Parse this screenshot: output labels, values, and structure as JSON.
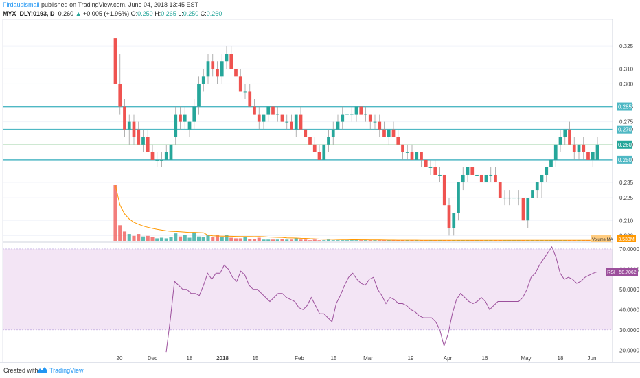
{
  "header": {
    "author": "FirdausIsmail",
    "published_text": "published on TradingView.com, June 04, 2018 13:45 EST"
  },
  "ohlc": {
    "symbol": "MYX_DLY:0193, D",
    "last": "0.260",
    "change": "+0.005 (+1.96%)",
    "o_label": "O:",
    "o": "0.250",
    "h_label": "H:",
    "h": "0.265",
    "l_label": "L:",
    "l": "0.250",
    "c_label": "C:",
    "c": "0.260"
  },
  "footer": {
    "created_with": "Created with",
    "brand": "TradingView"
  },
  "colors": {
    "up": "#26a69a",
    "down": "#ef5350",
    "hline": "#4fb8c4",
    "rsi": "#9c4f9c",
    "rsi_band": "#f3e5f5"
  },
  "chart_data": [
    {
      "type": "candlestick",
      "title": "MYX_DLY:0193, D",
      "y_ticks": [
        "0.325",
        "0.310",
        "0.300",
        "0.285",
        "0.275",
        "0.270",
        "0.260",
        "0.250",
        "0.235",
        "0.225",
        "0.210",
        "0.200"
      ],
      "ylim": [
        0.197,
        0.34
      ],
      "horizontal_lines": [
        0.285,
        0.27,
        0.25
      ],
      "price_labels": [
        "0.285",
        "0.270",
        "0.260",
        "0.250"
      ],
      "x_labels": [
        "20",
        "Dec",
        "18",
        "2018",
        "15",
        "Feb",
        "15",
        "Mar",
        "19",
        "Apr",
        "16",
        "May",
        "18",
        "Jun"
      ],
      "candles": [
        [
          0.33,
          0.33,
          0.3,
          0.3
        ],
        [
          0.3,
          0.32,
          0.28,
          0.285
        ],
        [
          0.285,
          0.29,
          0.265,
          0.27
        ],
        [
          0.27,
          0.28,
          0.26,
          0.275
        ],
        [
          0.275,
          0.28,
          0.26,
          0.265
        ],
        [
          0.27,
          0.275,
          0.26,
          0.26
        ],
        [
          0.26,
          0.27,
          0.255,
          0.265
        ],
        [
          0.265,
          0.27,
          0.255,
          0.255
        ],
        [
          0.255,
          0.26,
          0.25,
          0.25
        ],
        [
          0.25,
          0.255,
          0.245,
          0.25
        ],
        [
          0.25,
          0.255,
          0.245,
          0.25
        ],
        [
          0.25,
          0.26,
          0.25,
          0.255
        ],
        [
          0.25,
          0.26,
          0.25,
          0.26
        ],
        [
          0.265,
          0.285,
          0.26,
          0.28
        ],
        [
          0.28,
          0.285,
          0.27,
          0.275
        ],
        [
          0.275,
          0.285,
          0.27,
          0.28
        ],
        [
          0.27,
          0.275,
          0.265,
          0.275
        ],
        [
          0.275,
          0.29,
          0.27,
          0.285
        ],
        [
          0.285,
          0.305,
          0.28,
          0.3
        ],
        [
          0.3,
          0.31,
          0.295,
          0.305
        ],
        [
          0.305,
          0.32,
          0.3,
          0.315
        ],
        [
          0.315,
          0.32,
          0.305,
          0.31
        ],
        [
          0.31,
          0.315,
          0.3,
          0.305
        ],
        [
          0.305,
          0.32,
          0.3,
          0.315
        ],
        [
          0.315,
          0.325,
          0.31,
          0.32
        ],
        [
          0.32,
          0.325,
          0.31,
          0.31
        ],
        [
          0.31,
          0.315,
          0.3,
          0.305
        ],
        [
          0.305,
          0.31,
          0.295,
          0.295
        ],
        [
          0.295,
          0.3,
          0.29,
          0.295
        ],
        [
          0.295,
          0.3,
          0.285,
          0.285
        ],
        [
          0.285,
          0.29,
          0.28,
          0.28
        ],
        [
          0.28,
          0.285,
          0.27,
          0.275
        ],
        [
          0.275,
          0.28,
          0.27,
          0.28
        ],
        [
          0.28,
          0.285,
          0.275,
          0.285
        ],
        [
          0.285,
          0.29,
          0.28,
          0.28
        ],
        [
          0.28,
          0.285,
          0.275,
          0.28
        ],
        [
          0.28,
          0.28,
          0.275,
          0.275
        ],
        [
          0.275,
          0.28,
          0.27,
          0.275
        ],
        [
          0.275,
          0.28,
          0.27,
          0.27
        ],
        [
          0.27,
          0.28,
          0.265,
          0.28
        ],
        [
          0.28,
          0.285,
          0.27,
          0.27
        ],
        [
          0.27,
          0.27,
          0.265,
          0.265
        ],
        [
          0.265,
          0.27,
          0.26,
          0.26
        ],
        [
          0.26,
          0.265,
          0.255,
          0.255
        ],
        [
          0.255,
          0.26,
          0.25,
          0.25
        ],
        [
          0.25,
          0.26,
          0.25,
          0.26
        ],
        [
          0.26,
          0.27,
          0.255,
          0.265
        ],
        [
          0.265,
          0.275,
          0.26,
          0.27
        ],
        [
          0.27,
          0.28,
          0.27,
          0.275
        ],
        [
          0.275,
          0.285,
          0.27,
          0.28
        ],
        [
          0.28,
          0.285,
          0.275,
          0.28
        ],
        [
          0.28,
          0.285,
          0.275,
          0.28
        ],
        [
          0.28,
          0.285,
          0.275,
          0.285
        ],
        [
          0.285,
          0.285,
          0.28,
          0.28
        ],
        [
          0.28,
          0.285,
          0.275,
          0.28
        ],
        [
          0.28,
          0.28,
          0.27,
          0.275
        ],
        [
          0.275,
          0.28,
          0.27,
          0.275
        ],
        [
          0.275,
          0.28,
          0.265,
          0.27
        ],
        [
          0.27,
          0.275,
          0.265,
          0.265
        ],
        [
          0.265,
          0.27,
          0.26,
          0.27
        ],
        [
          0.27,
          0.275,
          0.265,
          0.265
        ],
        [
          0.265,
          0.27,
          0.26,
          0.26
        ],
        [
          0.26,
          0.26,
          0.25,
          0.255
        ],
        [
          0.255,
          0.26,
          0.25,
          0.255
        ],
        [
          0.255,
          0.26,
          0.25,
          0.25
        ],
        [
          0.25,
          0.255,
          0.25,
          0.255
        ],
        [
          0.255,
          0.255,
          0.245,
          0.25
        ],
        [
          0.25,
          0.25,
          0.245,
          0.245
        ],
        [
          0.245,
          0.25,
          0.24,
          0.245
        ],
        [
          0.245,
          0.25,
          0.24,
          0.24
        ],
        [
          0.24,
          0.245,
          0.235,
          0.24
        ],
        [
          0.24,
          0.24,
          0.22,
          0.22
        ],
        [
          0.22,
          0.225,
          0.2,
          0.205
        ],
        [
          0.205,
          0.215,
          0.2,
          0.215
        ],
        [
          0.215,
          0.235,
          0.21,
          0.235
        ],
        [
          0.235,
          0.245,
          0.23,
          0.24
        ],
        [
          0.24,
          0.245,
          0.235,
          0.245
        ],
        [
          0.245,
          0.245,
          0.24,
          0.24
        ],
        [
          0.24,
          0.245,
          0.235,
          0.24
        ],
        [
          0.24,
          0.24,
          0.235,
          0.235
        ],
        [
          0.235,
          0.24,
          0.235,
          0.24
        ],
        [
          0.24,
          0.245,
          0.235,
          0.24
        ],
        [
          0.24,
          0.245,
          0.235,
          0.235
        ],
        [
          0.235,
          0.235,
          0.225,
          0.225
        ],
        [
          0.225,
          0.23,
          0.22,
          0.225
        ],
        [
          0.225,
          0.23,
          0.22,
          0.225
        ],
        [
          0.225,
          0.23,
          0.22,
          0.225
        ],
        [
          0.225,
          0.23,
          0.22,
          0.225
        ],
        [
          0.225,
          0.225,
          0.21,
          0.21
        ],
        [
          0.21,
          0.225,
          0.205,
          0.225
        ],
        [
          0.225,
          0.23,
          0.225,
          0.23
        ],
        [
          0.23,
          0.235,
          0.225,
          0.235
        ],
        [
          0.235,
          0.24,
          0.225,
          0.24
        ],
        [
          0.24,
          0.245,
          0.235,
          0.245
        ],
        [
          0.245,
          0.25,
          0.24,
          0.25
        ],
        [
          0.25,
          0.26,
          0.245,
          0.26
        ],
        [
          0.26,
          0.27,
          0.255,
          0.265
        ],
        [
          0.265,
          0.27,
          0.26,
          0.27
        ],
        [
          0.27,
          0.275,
          0.26,
          0.26
        ],
        [
          0.26,
          0.265,
          0.25,
          0.255
        ],
        [
          0.255,
          0.26,
          0.25,
          0.26
        ],
        [
          0.26,
          0.265,
          0.25,
          0.255
        ],
        [
          0.255,
          0.26,
          0.25,
          0.25
        ],
        [
          0.25,
          0.255,
          0.245,
          0.255
        ],
        [
          0.25,
          0.265,
          0.25,
          0.26
        ]
      ]
    },
    {
      "type": "bar",
      "title": "Volume",
      "legend": "Volume MA",
      "value_label": "3.533M",
      "values": [
        9.0,
        2.6,
        1.6,
        1.2,
        0.9,
        1.2,
        0.8,
        0.9,
        0.7,
        0.5,
        0.6,
        0.5,
        0.7,
        1.3,
        0.8,
        1.0,
        0.6,
        1.5,
        0.8,
        0.7,
        1.1,
        0.7,
        1.1,
        0.7,
        1.0,
        0.6,
        0.5,
        0.5,
        0.7,
        0.4,
        0.4,
        0.6,
        0.3,
        0.3,
        0.3,
        0.3,
        0.4,
        0.3,
        0.3,
        0.5,
        0.3,
        0.3,
        0.2,
        0.3,
        0.2,
        0.2,
        0.3,
        0.2,
        0.2,
        0.2,
        0.2,
        0.2,
        0.2,
        0.2,
        0.2,
        0.2,
        0.2,
        0.2,
        0.2,
        0.2,
        0.2,
        0.2,
        0.2,
        0.2,
        0.2,
        0.2,
        0.2,
        0.2,
        0.2,
        0.2,
        0.2,
        0.2,
        0.2,
        0.2,
        0.2,
        0.2,
        0.2,
        0.2,
        0.2,
        0.2,
        0.2,
        0.2,
        0.2,
        0.2,
        0.2,
        0.2,
        0.2,
        0.2,
        0.2,
        0.2,
        0.2,
        0.2,
        0.2,
        0.2,
        0.2,
        0.2,
        0.2,
        0.2,
        0.2,
        0.2,
        0.2,
        0.2,
        0.2,
        0.2,
        0.9
      ]
    },
    {
      "type": "line",
      "title": "RSI",
      "value_label": "58.7062",
      "y_ticks": [
        "70.0000",
        "60.0000",
        "50.0000",
        "40.0000",
        "30.0000",
        "20.0000"
      ],
      "band": [
        30,
        70
      ],
      "ylim": [
        15,
        72
      ],
      "values": [
        19,
        35,
        54,
        52,
        50,
        50,
        48,
        48,
        47,
        52,
        58,
        55,
        58,
        58,
        62,
        60,
        56,
        54,
        59,
        57,
        52,
        50,
        50,
        48,
        46,
        44,
        46,
        48,
        48,
        46,
        45,
        44,
        41,
        40,
        42,
        46,
        42,
        38,
        38,
        36,
        34,
        43,
        47,
        52,
        56,
        58,
        55,
        53,
        52,
        55,
        56,
        50,
        47,
        43,
        46,
        45,
        43,
        43,
        42,
        40,
        39,
        37,
        36,
        36,
        36,
        34,
        30,
        22,
        28,
        38,
        45,
        48,
        46,
        44,
        43,
        44,
        46,
        44,
        40,
        42,
        44,
        44,
        44,
        44,
        44,
        44,
        46,
        50,
        56,
        58,
        62,
        65,
        68,
        71,
        66,
        58,
        55,
        56,
        55,
        53,
        54,
        56,
        57,
        58,
        58.7
      ]
    }
  ]
}
